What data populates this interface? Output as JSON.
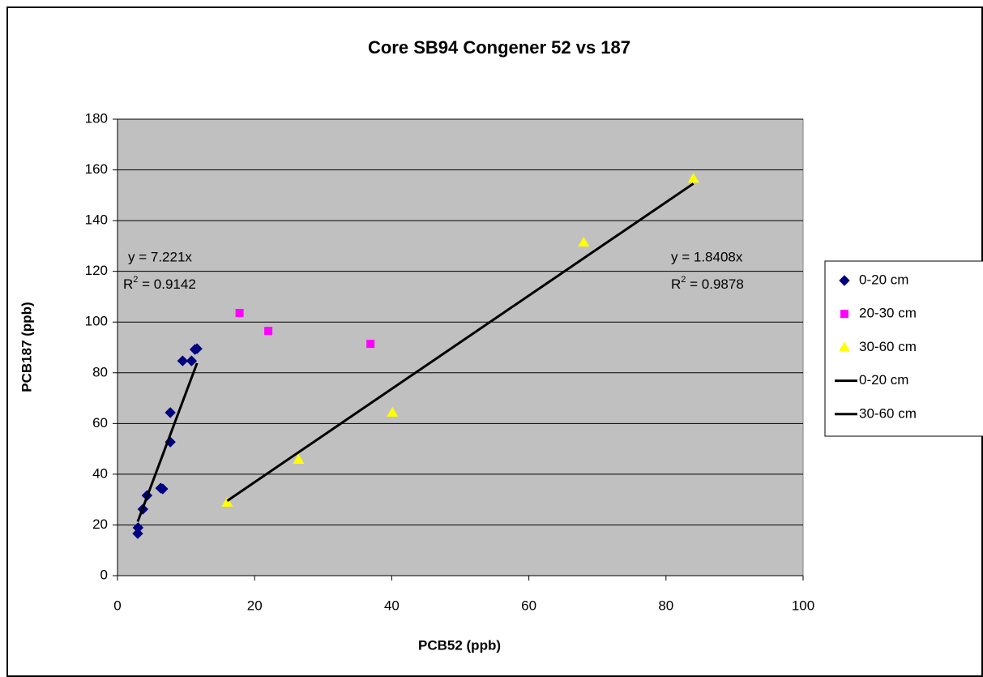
{
  "chart_data": {
    "type": "scatter",
    "title": "Core SB94 Congener 52 vs 187",
    "x_label": "PCB52 (ppb)",
    "y_label": "PCB187 (ppb)",
    "xlim": [
      0,
      100
    ],
    "xticks": [
      0,
      20,
      40,
      60,
      80,
      100
    ],
    "ylim": [
      0,
      180
    ],
    "yticks": [
      0,
      20,
      40,
      60,
      80,
      100,
      120,
      140,
      160,
      180
    ],
    "grid": true,
    "legend": "right",
    "series": [
      {
        "name": "0-20 cm",
        "type": "scatter",
        "marker": "diamond",
        "color": "#000080",
        "x": [
          2.95,
          3.0,
          3.7,
          4.3,
          6.3,
          6.6,
          7.7,
          7.7,
          9.5,
          10.8,
          11.3,
          11.6
        ],
        "values": [
          16.6,
          18.9,
          26.2,
          31.6,
          34.5,
          34.2,
          52.7,
          64.3,
          84.7,
          84.7,
          89.2,
          89.5
        ]
      },
      {
        "name": "20-30 cm",
        "type": "scatter",
        "marker": "square",
        "color": "#ff00ff",
        "x": [
          17.8,
          22.0,
          36.9
        ],
        "values": [
          103.6,
          96.5,
          91.4
        ]
      },
      {
        "name": "30-60 cm",
        "type": "scatter",
        "marker": "triangle",
        "color": "#ffff00",
        "x": [
          16.0,
          26.4,
          40.1,
          68.0,
          84.0
        ],
        "values": [
          28.8,
          45.7,
          64.3,
          131.4,
          156.6
        ]
      },
      {
        "name": "0-20 cm",
        "type": "line",
        "color": "#000000",
        "x": [
          2.95,
          11.6
        ],
        "values": [
          21.3,
          83.8
        ]
      },
      {
        "name": "30-60 cm",
        "type": "line",
        "color": "#000000",
        "x": [
          16.0,
          84.0
        ],
        "values": [
          29.5,
          154.6
        ]
      }
    ],
    "annotations": [
      {
        "equation": "y = 7.221x",
        "r2_label": "R",
        "r2_sup": "2",
        "r2_value": " = 0.9142"
      },
      {
        "equation": "y = 1.8408x",
        "r2_label": "R",
        "r2_sup": "2",
        "r2_value": " = 0.9878"
      }
    ]
  }
}
